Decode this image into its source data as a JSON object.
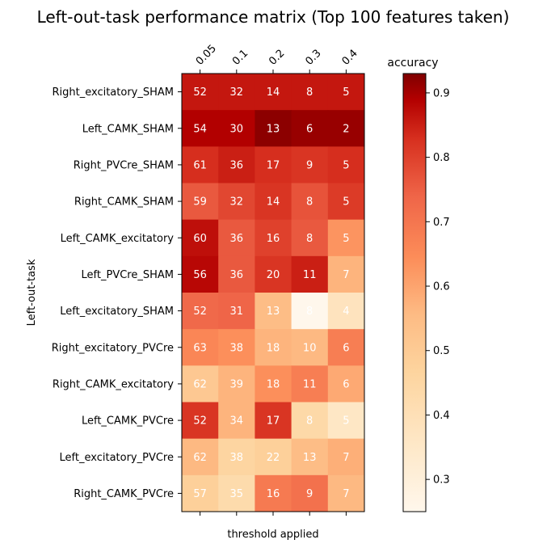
{
  "chart_data": {
    "type": "heatmap",
    "title": "Left-out-task performance matrix (Top 100 features taken)",
    "xlabel": "threshold applied",
    "ylabel": "Left-out-task",
    "colorbar_label": "accuracy",
    "colormap": "OrRd-like (white → dark red)",
    "color_range": [
      0.25,
      0.93
    ],
    "colorbar_ticks": [
      "0.3",
      "0.4",
      "0.5",
      "0.6",
      "0.7",
      "0.8",
      "0.9"
    ],
    "colorbar_tick_values": [
      0.3,
      0.4,
      0.5,
      0.6,
      0.7,
      0.8,
      0.9
    ],
    "x_categories": [
      "0.05",
      "0.1",
      "0.2",
      "0.3",
      "0.4"
    ],
    "y_categories": [
      "Right_excitatory_SHAM",
      "Left_CAMK_SHAM",
      "Right_PVCre_SHAM",
      "Right_CAMK_SHAM",
      "Left_CAMK_excitatory",
      "Left_PVCre_SHAM",
      "Left_excitatory_SHAM",
      "Right_excitatory_PVCre",
      "Right_CAMK_excitatory",
      "Left_CAMK_PVCre",
      "Left_excitatory_PVCre",
      "Right_CAMK_PVCre"
    ],
    "accuracy": [
      [
        0.86,
        0.86,
        0.86,
        0.86,
        0.86
      ],
      [
        0.89,
        0.89,
        0.92,
        0.91,
        0.91
      ],
      [
        0.83,
        0.85,
        0.83,
        0.82,
        0.83
      ],
      [
        0.76,
        0.79,
        0.82,
        0.77,
        0.81
      ],
      [
        0.87,
        0.76,
        0.8,
        0.76,
        0.63
      ],
      [
        0.88,
        0.76,
        0.82,
        0.85,
        0.57
      ],
      [
        0.73,
        0.74,
        0.55,
        0.25,
        0.38
      ],
      [
        0.66,
        0.64,
        0.57,
        0.56,
        0.68
      ],
      [
        0.51,
        0.57,
        0.64,
        0.68,
        0.59
      ],
      [
        0.82,
        0.57,
        0.82,
        0.44,
        0.36
      ],
      [
        0.56,
        0.46,
        0.48,
        0.55,
        0.58
      ],
      [
        0.48,
        0.43,
        0.69,
        0.71,
        0.56
      ]
    ],
    "counts": [
      [
        52,
        32,
        14,
        8,
        5
      ],
      [
        54,
        30,
        13,
        6,
        2
      ],
      [
        61,
        36,
        17,
        9,
        5
      ],
      [
        59,
        32,
        14,
        8,
        5
      ],
      [
        60,
        36,
        16,
        8,
        5
      ],
      [
        56,
        36,
        20,
        11,
        7
      ],
      [
        52,
        31,
        13,
        8,
        4
      ],
      [
        63,
        38,
        18,
        10,
        6
      ],
      [
        62,
        39,
        18,
        11,
        6
      ],
      [
        52,
        34,
        17,
        8,
        5
      ],
      [
        62,
        38,
        22,
        13,
        7
      ],
      [
        57,
        35,
        16,
        9,
        7
      ]
    ]
  }
}
